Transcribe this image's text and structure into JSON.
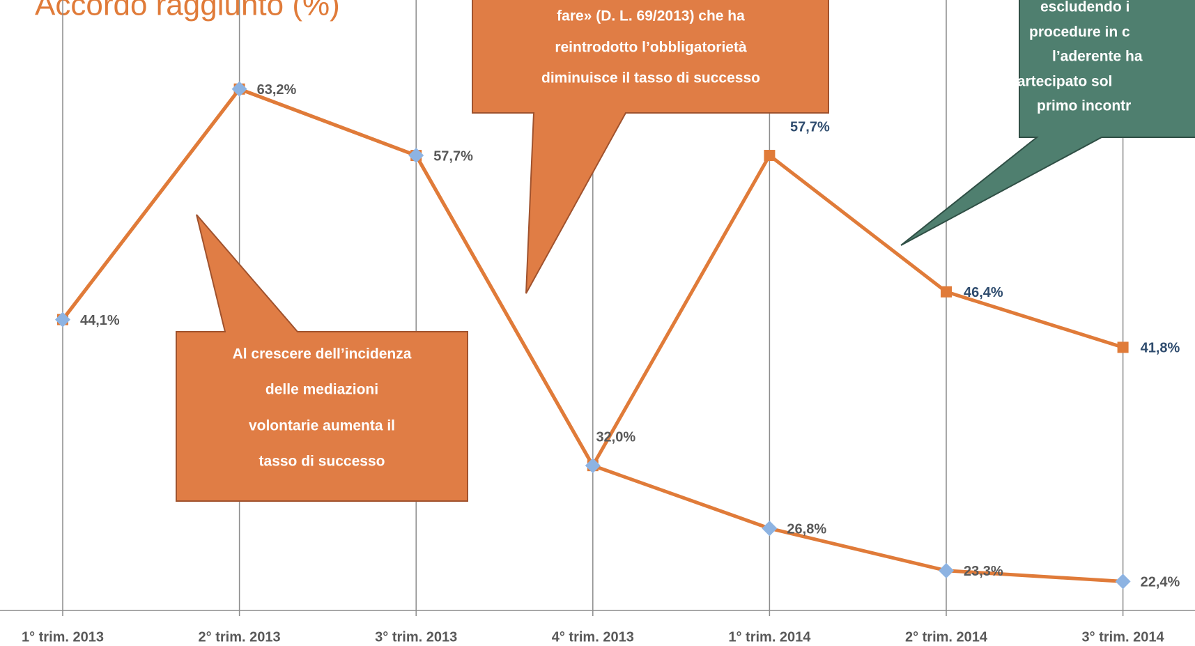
{
  "chart_data": {
    "type": "line",
    "title": "Accordo raggiunto (%)",
    "categories": [
      "1° trim. 2013",
      "2° trim. 2013",
      "3° trim. 2013",
      "4° trim. 2013",
      "1° trim. 2014",
      "2° trim. 2014",
      "3° trim. 2014"
    ],
    "series": [
      {
        "color": "#e07b39",
        "marker": "diamond",
        "marker_color": "#8db3e2",
        "label_color": "#595959",
        "values": [
          44.1,
          63.2,
          57.7,
          32.0,
          26.8,
          23.3,
          22.4
        ],
        "value_labels": [
          "44,1%",
          "63,2%",
          "57,7%",
          "32,0%",
          "26,8%",
          "23,3%",
          "22,4%"
        ]
      },
      {
        "color": "#e07b39",
        "marker": "square",
        "marker_color": "#e07b39",
        "label_color": "#2f4c6e",
        "values": [
          44.1,
          63.2,
          57.7,
          32.0,
          57.7,
          46.4,
          41.8
        ],
        "value_labels": [
          null,
          null,
          null,
          null,
          "57,7%",
          "46,4%",
          "41,8%"
        ]
      }
    ],
    "ylim": [
      20,
      70
    ],
    "grid": true,
    "annotations": [
      {
        "lines": [
          "fare» (D. L. 69/2013) che ha",
          "reintrodotto l’obbligatorietà",
          "diminuisce il tasso di successo"
        ]
      },
      {
        "lines": [
          "Al crescere dell’incidenza",
          "delle mediazioni",
          "volontarie aumenta il",
          "tasso di successo"
        ]
      },
      {
        "lines": [
          "escludendo i",
          "procedure in c",
          "l’aderente ha",
          "partecipato sol",
          "primo incontr"
        ]
      }
    ]
  }
}
